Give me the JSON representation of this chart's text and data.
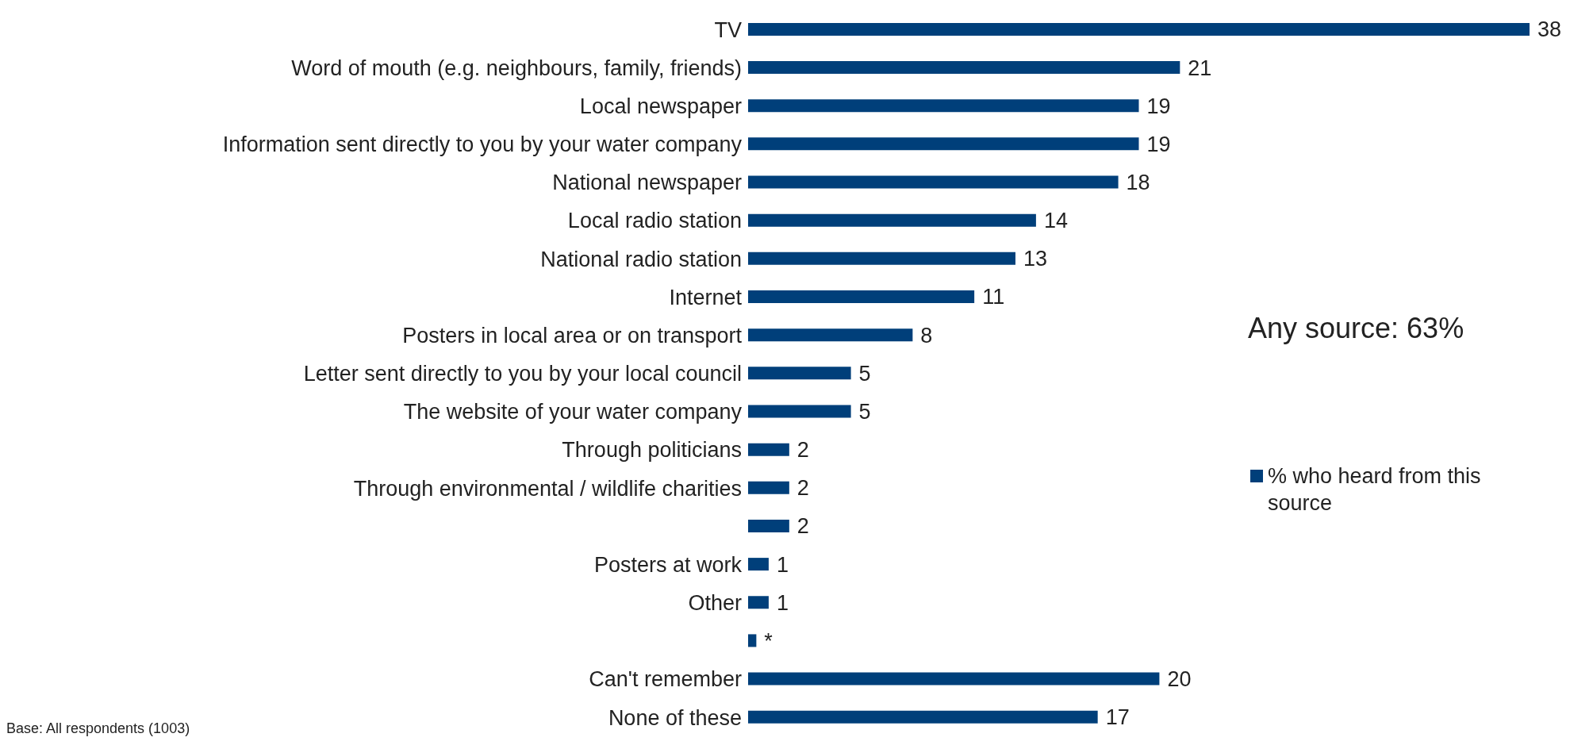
{
  "chart_data": {
    "type": "bar",
    "orientation": "horizontal",
    "categories": [
      "TV",
      "Word of mouth (e.g. neighbours, family, friends)",
      "Local newspaper",
      "Information sent directly to you by your water company",
      "National newspaper",
      "Local radio station",
      "National radio station",
      "Internet",
      "Posters in local area or on transport",
      "Letter sent directly to you by your local council",
      "The website of your water company",
      "Through politicians",
      "Through environmental / wildlife charities",
      null,
      "Posters at work",
      "Other",
      null,
      "Can't remember",
      "None of these"
    ],
    "series": [
      {
        "name": "% who heard from this source",
        "color": "#003f7a",
        "values": [
          38,
          21,
          19,
          19,
          18,
          14,
          13,
          11,
          8,
          5,
          5,
          2,
          2,
          2,
          1,
          1,
          0.4,
          20,
          17
        ],
        "value_labels": [
          "38",
          "21",
          "19",
          "19",
          "18",
          "14",
          "13",
          "11",
          "8",
          "5",
          "5",
          "2",
          "2",
          "2",
          "1",
          "1",
          "*",
          "20",
          "17"
        ]
      }
    ],
    "legend": "right",
    "annotations": [
      "Any source: 63%",
      "Base:  All respondents (1003)"
    ]
  }
}
